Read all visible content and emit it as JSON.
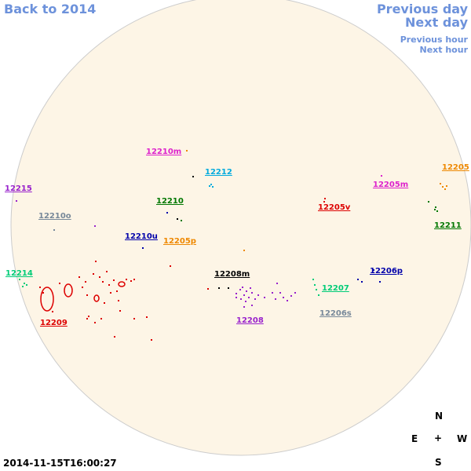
{
  "nav": {
    "back": "Back to 2014",
    "previous_day": "Previous day",
    "next_day": "Next day",
    "previous_hour": "Previous hour",
    "next_hour": "Next hour"
  },
  "disk_color": "#fdf5e6",
  "regions": [
    {
      "label": "12210m",
      "color": "#dd22cc"
    },
    {
      "label": "12212",
      "color": "#00aadd"
    },
    {
      "label": "12205",
      "color": "#ee8800"
    },
    {
      "label": "12215",
      "color": "#9922cc"
    },
    {
      "label": "12205m",
      "color": "#dd22cc"
    },
    {
      "label": "12210",
      "color": "#007700"
    },
    {
      "label": "12205v",
      "color": "#dd0000"
    },
    {
      "label": "12210o",
      "color": "#778899"
    },
    {
      "label": "12211",
      "color": "#007700"
    },
    {
      "label": "12210u",
      "color": "#0000aa"
    },
    {
      "label": "12205p",
      "color": "#ee8800"
    },
    {
      "label": "12214",
      "color": "#00cc77"
    },
    {
      "label": "12208m",
      "color": "#000000"
    },
    {
      "label": "12206p",
      "color": "#0000aa"
    },
    {
      "label": "12207",
      "color": "#00cc77"
    },
    {
      "label": "12209",
      "color": "#dd0000"
    },
    {
      "label": "12208",
      "color": "#9922cc"
    },
    {
      "label": "12206s",
      "color": "#778899"
    }
  ],
  "compass": {
    "north": "N",
    "south": "S",
    "east": "E",
    "west": "W",
    "center": "+"
  },
  "timestamp": "2014-11-15T16:00:27"
}
